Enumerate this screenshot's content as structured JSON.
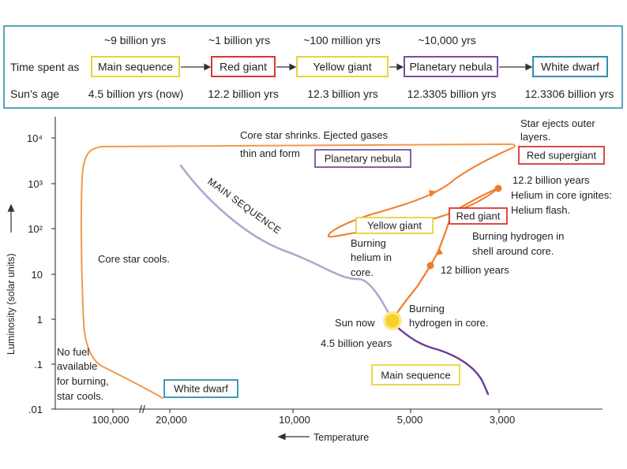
{
  "timeline": {
    "row_labels": {
      "time_spent": "Time spent as",
      "suns_age": "Sun’s age"
    },
    "stages": [
      {
        "duration": "~9 billion yrs",
        "name": "Main sequence",
        "age": "4.5 billion yrs (now)",
        "color": "#e8d43a"
      },
      {
        "duration": "~1 billion yrs",
        "name": "Red giant",
        "age": "12.2 billion yrs",
        "color": "#d8372f"
      },
      {
        "duration": "~100 million yrs",
        "name": "Yellow giant",
        "age": "12.3 billion yrs",
        "color": "#e8d43a"
      },
      {
        "duration": "~10,000 yrs",
        "name": "Planetary nebula",
        "age": "12.3305 billion yrs",
        "color": "#7a4e9e"
      },
      {
        "duration": "",
        "name": "White dwarf",
        "age": "12.3306 billion yrs",
        "color": "#2e8fb2"
      }
    ],
    "frame_color": "#2e8fb2"
  },
  "diagram": {
    "y_axis": {
      "label": "Luminosity (solar units)",
      "ticks": [
        "10⁴",
        "10³",
        "10²",
        "10",
        "1",
        ".1",
        ".01"
      ]
    },
    "x_axis": {
      "label": "Temperature",
      "ticks": [
        "100,000",
        "20,000",
        "10,000",
        "5,000",
        "3,000"
      ],
      "break_mark": "//"
    },
    "main_sequence_band_label": "MAIN SEQUENCE",
    "boxes": {
      "planetary_nebula": "Planetary nebula",
      "red_supergiant": "Red supergiant",
      "yellow_giant": "Yellow giant",
      "red_giant": "Red giant",
      "main_sequence": "Main sequence",
      "white_dwarf": "White dwarf"
    },
    "notes": {
      "core_shrinks": [
        "Core star shrinks. Ejected gases",
        "thin and form"
      ],
      "ejects_outer": [
        "Star ejects outer",
        "layers."
      ],
      "helium_flash": [
        "12.2 billion years",
        "Helium in core ignites:",
        "Helium flash."
      ],
      "burning_shell": [
        "Burning hydrogen in",
        "shell around core."
      ],
      "twelve_billion": "12 billion years",
      "burning_helium": [
        "Burning",
        "helium in",
        "core."
      ],
      "burning_core": [
        "Burning",
        "hydrogen in core."
      ],
      "sun_now": "Sun now",
      "sun_age": "4.5 billion years",
      "core_cools": "Core star cools.",
      "no_fuel": [
        "No fuel",
        "available",
        "for burning,",
        "star cools."
      ]
    },
    "colors": {
      "track": "#f09a4a",
      "red_giant_track": "#ef7d2c",
      "main_sequence_band": "#b3a6cf",
      "post_sequence": "#6a3a99",
      "sun": "#f7cf2a",
      "sun_glow": "#fbe98a",
      "dot": "#ee7a2a",
      "red_box": "#d8372f",
      "yellow_box": "#e8d43a",
      "purple_box": "#7a4e9e",
      "blue_box": "#2e8fb2"
    }
  }
}
